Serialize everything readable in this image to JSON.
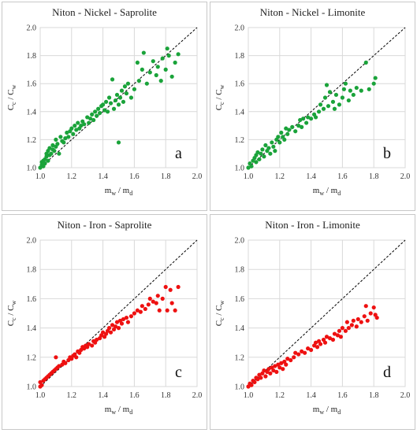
{
  "chart_data": [
    {
      "type": "scatter",
      "title": "Niton - Nickel - Saprolite",
      "panel_label": "a",
      "color": "#1aa33a",
      "xlabel_main": "m",
      "xlabel_sub1": "w",
      "xlabel_sep": " / m",
      "xlabel_sub2": "d",
      "ylabel_main": "C",
      "ylabel_sub1": "c",
      "ylabel_sep": " / C",
      "ylabel_sub2": "w",
      "xlim": [
        1.0,
        2.0
      ],
      "ylim": [
        1.0,
        2.0
      ],
      "xticks": [
        "1.0",
        "1.2",
        "1.4",
        "1.6",
        "1.8",
        "2.0"
      ],
      "yticks": [
        "1.0",
        "1.2",
        "1.4",
        "1.6",
        "1.8",
        "2.0"
      ],
      "grid": true,
      "reference_line": "y = x (dashed)",
      "points": [
        [
          1.0,
          1.0
        ],
        [
          1.01,
          1.02
        ],
        [
          1.01,
          1.04
        ],
        [
          1.02,
          1.01
        ],
        [
          1.02,
          1.05
        ],
        [
          1.03,
          1.03
        ],
        [
          1.03,
          1.06
        ],
        [
          1.04,
          1.08
        ],
        [
          1.04,
          1.1
        ],
        [
          1.05,
          1.05
        ],
        [
          1.05,
          1.12
        ],
        [
          1.06,
          1.09
        ],
        [
          1.06,
          1.14
        ],
        [
          1.07,
          1.1
        ],
        [
          1.08,
          1.13
        ],
        [
          1.08,
          1.16
        ],
        [
          1.09,
          1.12
        ],
        [
          1.1,
          1.15
        ],
        [
          1.1,
          1.2
        ],
        [
          1.11,
          1.17
        ],
        [
          1.12,
          1.1
        ],
        [
          1.13,
          1.22
        ],
        [
          1.14,
          1.19
        ],
        [
          1.15,
          1.18
        ],
        [
          1.16,
          1.21
        ],
        [
          1.17,
          1.25
        ],
        [
          1.18,
          1.22
        ],
        [
          1.19,
          1.26
        ],
        [
          1.2,
          1.28
        ],
        [
          1.21,
          1.24
        ],
        [
          1.22,
          1.3
        ],
        [
          1.23,
          1.27
        ],
        [
          1.24,
          1.32
        ],
        [
          1.25,
          1.28
        ],
        [
          1.26,
          1.3
        ],
        [
          1.27,
          1.33
        ],
        [
          1.28,
          1.31
        ],
        [
          1.3,
          1.36
        ],
        [
          1.31,
          1.32
        ],
        [
          1.32,
          1.35
        ],
        [
          1.33,
          1.38
        ],
        [
          1.34,
          1.34
        ],
        [
          1.35,
          1.4
        ],
        [
          1.36,
          1.37
        ],
        [
          1.37,
          1.42
        ],
        [
          1.38,
          1.39
        ],
        [
          1.39,
          1.44
        ],
        [
          1.4,
          1.45
        ],
        [
          1.41,
          1.41
        ],
        [
          1.42,
          1.47
        ],
        [
          1.43,
          1.4
        ],
        [
          1.44,
          1.5
        ],
        [
          1.45,
          1.46
        ],
        [
          1.46,
          1.63
        ],
        [
          1.47,
          1.42
        ],
        [
          1.48,
          1.48
        ],
        [
          1.49,
          1.52
        ],
        [
          1.5,
          1.45
        ],
        [
          1.5,
          1.18
        ],
        [
          1.51,
          1.5
        ],
        [
          1.52,
          1.55
        ],
        [
          1.53,
          1.47
        ],
        [
          1.54,
          1.58
        ],
        [
          1.55,
          1.53
        ],
        [
          1.56,
          1.6
        ],
        [
          1.58,
          1.5
        ],
        [
          1.6,
          1.56
        ],
        [
          1.62,
          1.75
        ],
        [
          1.63,
          1.62
        ],
        [
          1.65,
          1.7
        ],
        [
          1.66,
          1.82
        ],
        [
          1.68,
          1.6
        ],
        [
          1.7,
          1.68
        ],
        [
          1.72,
          1.76
        ],
        [
          1.74,
          1.66
        ],
        [
          1.75,
          1.72
        ],
        [
          1.77,
          1.62
        ],
        [
          1.78,
          1.78
        ],
        [
          1.8,
          1.7
        ],
        [
          1.81,
          1.85
        ],
        [
          1.82,
          1.8
        ],
        [
          1.84,
          1.65
        ],
        [
          1.86,
          1.75
        ],
        [
          1.88,
          1.81
        ]
      ]
    },
    {
      "type": "scatter",
      "title": "Niton - Nickel - Limonite",
      "panel_label": "b",
      "color": "#1aa33a",
      "xlabel_main": "m",
      "xlabel_sub1": "w",
      "xlabel_sep": " / m",
      "xlabel_sub2": "d",
      "ylabel_main": "C",
      "ylabel_sub1": "c",
      "ylabel_sep": " / C",
      "ylabel_sub2": "w",
      "xlim": [
        1.0,
        2.0
      ],
      "ylim": [
        1.0,
        2.0
      ],
      "xticks": [
        "1.0",
        "1.2",
        "1.4",
        "1.6",
        "1.8",
        "2.0"
      ],
      "yticks": [
        "1.0",
        "1.2",
        "1.4",
        "1.6",
        "1.8",
        "2.0"
      ],
      "grid": true,
      "reference_line": "y = x (dashed)",
      "points": [
        [
          1.0,
          1.0
        ],
        [
          1.01,
          1.03
        ],
        [
          1.02,
          1.01
        ],
        [
          1.03,
          1.05
        ],
        [
          1.04,
          1.07
        ],
        [
          1.05,
          1.04
        ],
        [
          1.05,
          1.09
        ],
        [
          1.06,
          1.11
        ],
        [
          1.07,
          1.06
        ],
        [
          1.08,
          1.1
        ],
        [
          1.09,
          1.13
        ],
        [
          1.1,
          1.08
        ],
        [
          1.11,
          1.16
        ],
        [
          1.12,
          1.12
        ],
        [
          1.13,
          1.14
        ],
        [
          1.14,
          1.1
        ],
        [
          1.15,
          1.18
        ],
        [
          1.16,
          1.15
        ],
        [
          1.17,
          1.12
        ],
        [
          1.18,
          1.2
        ],
        [
          1.19,
          1.22
        ],
        [
          1.2,
          1.18
        ],
        [
          1.21,
          1.25
        ],
        [
          1.22,
          1.22
        ],
        [
          1.23,
          1.2
        ],
        [
          1.24,
          1.28
        ],
        [
          1.25,
          1.24
        ],
        [
          1.26,
          1.27
        ],
        [
          1.28,
          1.29
        ],
        [
          1.3,
          1.26
        ],
        [
          1.32,
          1.3
        ],
        [
          1.33,
          1.34
        ],
        [
          1.34,
          1.29
        ],
        [
          1.35,
          1.35
        ],
        [
          1.37,
          1.32
        ],
        [
          1.38,
          1.36
        ],
        [
          1.4,
          1.35
        ],
        [
          1.42,
          1.38
        ],
        [
          1.43,
          1.36
        ],
        [
          1.45,
          1.4
        ],
        [
          1.46,
          1.45
        ],
        [
          1.48,
          1.42
        ],
        [
          1.49,
          1.5
        ],
        [
          1.5,
          1.59
        ],
        [
          1.51,
          1.44
        ],
        [
          1.52,
          1.54
        ],
        [
          1.54,
          1.47
        ],
        [
          1.55,
          1.42
        ],
        [
          1.56,
          1.52
        ],
        [
          1.58,
          1.45
        ],
        [
          1.6,
          1.5
        ],
        [
          1.61,
          1.56
        ],
        [
          1.62,
          1.6
        ],
        [
          1.64,
          1.48
        ],
        [
          1.65,
          1.55
        ],
        [
          1.67,
          1.52
        ],
        [
          1.69,
          1.57
        ],
        [
          1.72,
          1.55
        ],
        [
          1.75,
          1.75
        ],
        [
          1.77,
          1.56
        ],
        [
          1.8,
          1.6
        ],
        [
          1.81,
          1.64
        ]
      ]
    },
    {
      "type": "scatter",
      "title": "Niton - Iron - Saprolite",
      "panel_label": "c",
      "color": "#ee1111",
      "xlabel_main": "m",
      "xlabel_sub1": "w",
      "xlabel_sep": " / m",
      "xlabel_sub2": "d",
      "ylabel_main": "C",
      "ylabel_sub1": "c",
      "ylabel_sep": " / C",
      "ylabel_sub2": "w",
      "xlim": [
        1.0,
        2.0
      ],
      "ylim": [
        1.0,
        2.0
      ],
      "xticks": [
        "1.0",
        "1.2",
        "1.4",
        "1.6",
        "1.8",
        "2.0"
      ],
      "yticks": [
        "1.0",
        "1.2",
        "1.4",
        "1.6",
        "1.8",
        "2.0"
      ],
      "grid": true,
      "reference_line": "y = x (dashed)",
      "points": [
        [
          1.0,
          1.0
        ],
        [
          1.0,
          1.03
        ],
        [
          1.01,
          1.01
        ],
        [
          1.02,
          1.04
        ],
        [
          1.03,
          1.05
        ],
        [
          1.04,
          1.06
        ],
        [
          1.05,
          1.07
        ],
        [
          1.06,
          1.08
        ],
        [
          1.07,
          1.09
        ],
        [
          1.08,
          1.1
        ],
        [
          1.09,
          1.11
        ],
        [
          1.1,
          1.12
        ],
        [
          1.1,
          1.2
        ],
        [
          1.11,
          1.13
        ],
        [
          1.12,
          1.14
        ],
        [
          1.14,
          1.15
        ],
        [
          1.15,
          1.17
        ],
        [
          1.16,
          1.16
        ],
        [
          1.18,
          1.18
        ],
        [
          1.19,
          1.2
        ],
        [
          1.2,
          1.19
        ],
        [
          1.21,
          1.21
        ],
        [
          1.22,
          1.22
        ],
        [
          1.23,
          1.2
        ],
        [
          1.24,
          1.24
        ],
        [
          1.25,
          1.23
        ],
        [
          1.26,
          1.25
        ],
        [
          1.27,
          1.27
        ],
        [
          1.28,
          1.26
        ],
        [
          1.29,
          1.28
        ],
        [
          1.3,
          1.27
        ],
        [
          1.31,
          1.29
        ],
        [
          1.33,
          1.28
        ],
        [
          1.34,
          1.31
        ],
        [
          1.35,
          1.3
        ],
        [
          1.36,
          1.32
        ],
        [
          1.38,
          1.33
        ],
        [
          1.39,
          1.35
        ],
        [
          1.4,
          1.37
        ],
        [
          1.41,
          1.34
        ],
        [
          1.42,
          1.36
        ],
        [
          1.43,
          1.38
        ],
        [
          1.44,
          1.4
        ],
        [
          1.45,
          1.37
        ],
        [
          1.46,
          1.42
        ],
        [
          1.47,
          1.39
        ],
        [
          1.48,
          1.41
        ],
        [
          1.49,
          1.44
        ],
        [
          1.5,
          1.4
        ],
        [
          1.51,
          1.45
        ],
        [
          1.52,
          1.43
        ],
        [
          1.53,
          1.46
        ],
        [
          1.55,
          1.47
        ],
        [
          1.56,
          1.44
        ],
        [
          1.58,
          1.48
        ],
        [
          1.6,
          1.5
        ],
        [
          1.62,
          1.52
        ],
        [
          1.64,
          1.51
        ],
        [
          1.65,
          1.55
        ],
        [
          1.67,
          1.53
        ],
        [
          1.69,
          1.56
        ],
        [
          1.7,
          1.6
        ],
        [
          1.72,
          1.58
        ],
        [
          1.74,
          1.57
        ],
        [
          1.75,
          1.62
        ],
        [
          1.76,
          1.52
        ],
        [
          1.78,
          1.6
        ],
        [
          1.8,
          1.68
        ],
        [
          1.81,
          1.52
        ],
        [
          1.83,
          1.66
        ],
        [
          1.84,
          1.57
        ],
        [
          1.86,
          1.52
        ],
        [
          1.88,
          1.68
        ]
      ]
    },
    {
      "type": "scatter",
      "title": "Niton - Iron - Limonite",
      "panel_label": "d",
      "color": "#ee1111",
      "xlabel_main": "m",
      "xlabel_sub1": "w",
      "xlabel_sep": " / m",
      "xlabel_sub2": "d",
      "ylabel_main": "C",
      "ylabel_sub1": "c",
      "ylabel_sep": " / C",
      "ylabel_sub2": "w",
      "xlim": [
        1.0,
        2.0
      ],
      "ylim": [
        1.0,
        2.0
      ],
      "xticks": [
        "1.0",
        "1.2",
        "1.4",
        "1.6",
        "1.8",
        "2.0"
      ],
      "yticks": [
        "1.0",
        "1.2",
        "1.4",
        "1.6",
        "1.8",
        "2.0"
      ],
      "grid": true,
      "reference_line": "y = x (dashed)",
      "points": [
        [
          1.0,
          1.0
        ],
        [
          1.01,
          1.02
        ],
        [
          1.02,
          1.01
        ],
        [
          1.03,
          1.04
        ],
        [
          1.04,
          1.03
        ],
        [
          1.05,
          1.06
        ],
        [
          1.06,
          1.05
        ],
        [
          1.07,
          1.08
        ],
        [
          1.08,
          1.06
        ],
        [
          1.09,
          1.09
        ],
        [
          1.1,
          1.11
        ],
        [
          1.11,
          1.07
        ],
        [
          1.12,
          1.1
        ],
        [
          1.13,
          1.12
        ],
        [
          1.14,
          1.09
        ],
        [
          1.15,
          1.13
        ],
        [
          1.16,
          1.11
        ],
        [
          1.17,
          1.14
        ],
        [
          1.18,
          1.1
        ],
        [
          1.19,
          1.15
        ],
        [
          1.2,
          1.13
        ],
        [
          1.21,
          1.16
        ],
        [
          1.22,
          1.12
        ],
        [
          1.23,
          1.17
        ],
        [
          1.24,
          1.15
        ],
        [
          1.25,
          1.19
        ],
        [
          1.27,
          1.18
        ],
        [
          1.29,
          1.2
        ],
        [
          1.3,
          1.23
        ],
        [
          1.32,
          1.22
        ],
        [
          1.34,
          1.24
        ],
        [
          1.36,
          1.23
        ],
        [
          1.38,
          1.26
        ],
        [
          1.4,
          1.25
        ],
        [
          1.42,
          1.28
        ],
        [
          1.43,
          1.3
        ],
        [
          1.44,
          1.27
        ],
        [
          1.45,
          1.31
        ],
        [
          1.46,
          1.29
        ],
        [
          1.48,
          1.32
        ],
        [
          1.49,
          1.3
        ],
        [
          1.5,
          1.34
        ],
        [
          1.52,
          1.33
        ],
        [
          1.54,
          1.32
        ],
        [
          1.55,
          1.36
        ],
        [
          1.57,
          1.35
        ],
        [
          1.58,
          1.38
        ],
        [
          1.59,
          1.34
        ],
        [
          1.6,
          1.4
        ],
        [
          1.62,
          1.38
        ],
        [
          1.63,
          1.44
        ],
        [
          1.64,
          1.4
        ],
        [
          1.66,
          1.42
        ],
        [
          1.67,
          1.45
        ],
        [
          1.69,
          1.41
        ],
        [
          1.7,
          1.46
        ],
        [
          1.72,
          1.44
        ],
        [
          1.74,
          1.48
        ],
        [
          1.75,
          1.55
        ],
        [
          1.76,
          1.45
        ],
        [
          1.78,
          1.5
        ],
        [
          1.8,
          1.54
        ],
        [
          1.81,
          1.49
        ],
        [
          1.82,
          1.47
        ]
      ]
    }
  ]
}
